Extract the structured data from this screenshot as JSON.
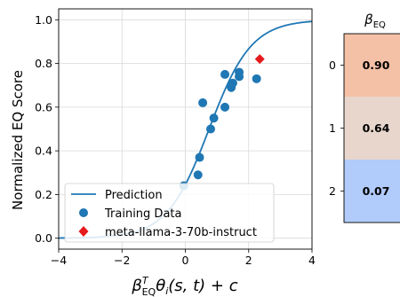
{
  "chart_data": [
    {
      "type": "scatter",
      "xlabel": "β_EQ^T θ_i(s, t) + c",
      "xlabel_parts": {
        "beta": "β",
        "beta_sub": "EQ",
        "beta_sup": "T",
        "theta": "θ",
        "theta_sub": "i",
        "rest": "(s, t) + c"
      },
      "ylabel": "Normalized EQ Score",
      "xlim": [
        -4,
        4
      ],
      "ylim": [
        -0.05,
        1.05
      ],
      "x_ticks": [
        -4,
        -2,
        0,
        2,
        4
      ],
      "x_tick_labels": [
        "−4",
        "−2",
        "0",
        "2",
        "4"
      ],
      "y_ticks": [
        0.0,
        0.2,
        0.4,
        0.6,
        0.8,
        1.0
      ],
      "y_tick_labels": [
        "0.0",
        "0.2",
        "0.4",
        "0.6",
        "0.8",
        "1.0"
      ],
      "grid": true,
      "legend_position": "lower-left",
      "series": [
        {
          "name": "Prediction",
          "kind": "line",
          "color": "#1f77b4",
          "curve": "logistic",
          "curve_params": {
            "k": 1.5,
            "x0": 0.75
          }
        },
        {
          "name": "Training Data",
          "kind": "scatter",
          "color": "#1f77b4",
          "points": [
            [
              -0.05,
              0.24
            ],
            [
              0.4,
              0.29
            ],
            [
              0.45,
              0.37
            ],
            [
              0.55,
              0.62
            ],
            [
              0.8,
              0.5
            ],
            [
              0.9,
              0.55
            ],
            [
              1.25,
              0.6
            ],
            [
              1.25,
              0.75
            ],
            [
              1.45,
              0.69
            ],
            [
              1.5,
              0.71
            ],
            [
              1.7,
              0.74
            ],
            [
              1.7,
              0.76
            ],
            [
              2.25,
              0.73
            ]
          ]
        },
        {
          "name": "meta-llama-3-70b-instruct",
          "kind": "scatter",
          "marker": "diamond",
          "color": "#e41a1c",
          "points": [
            [
              2.35,
              0.82
            ]
          ]
        }
      ]
    },
    {
      "type": "heatmap",
      "title_parts": {
        "beta": "β",
        "sub": "EQ"
      },
      "rows": [
        "0",
        "1",
        "2"
      ],
      "values": [
        0.9,
        0.64,
        0.07
      ],
      "value_labels": [
        "0.90",
        "0.64",
        "0.07"
      ],
      "colors": [
        "#f4c0a6",
        "#e8d6cc",
        "#b1cbfa"
      ]
    }
  ]
}
